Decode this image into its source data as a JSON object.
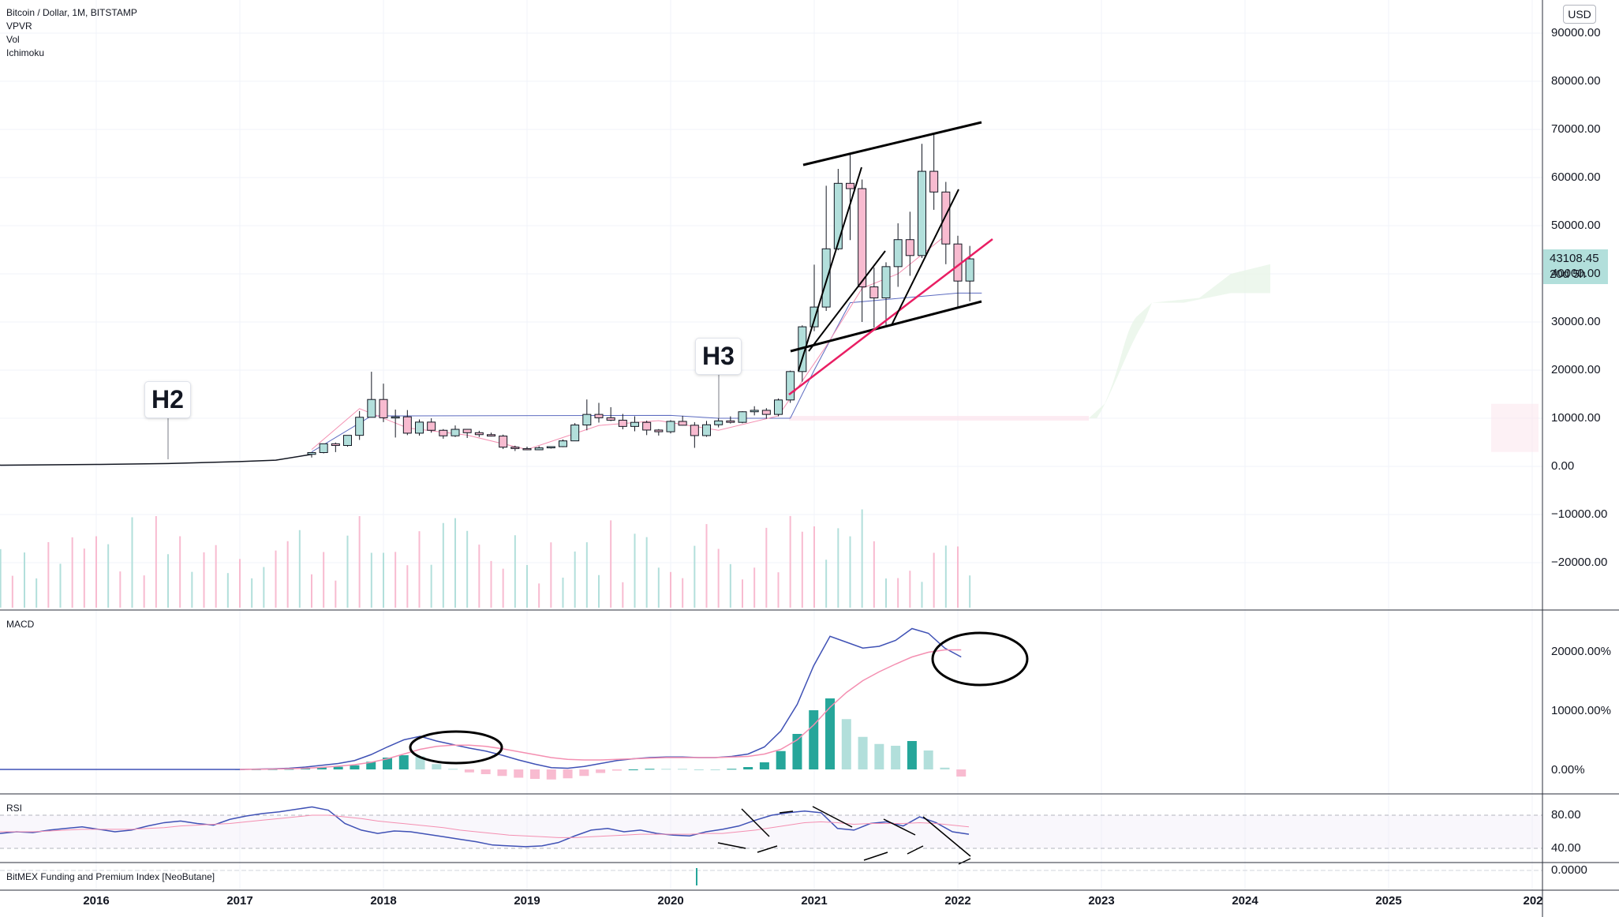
{
  "header": {
    "symbol": "Bitcoin / Dollar, 1M, BITSTAMP",
    "indicators": [
      "VPVR",
      "Vol",
      "Ichimoku"
    ]
  },
  "currency_badge": "USD",
  "last_price": {
    "price": "43108.45",
    "countdown": "20d 5h"
  },
  "panes": {
    "macd_label": "MACD",
    "rsi_label": "RSI",
    "funding_label": "BitMEX Funding and Premium Index [NeoButane]"
  },
  "annotations": [
    "H2",
    "H3"
  ],
  "price_axis": [
    "90000.00",
    "80000.00",
    "70000.00",
    "60000.00",
    "50000.00",
    "40000.00",
    "30000.00",
    "20000.00",
    "10000.00",
    "0.00",
    "−10000.00",
    "−20000.00"
  ],
  "macd_axis": [
    "20000.00%",
    "10000.00%",
    "0.00%"
  ],
  "rsi_axis": [
    "80.00",
    "40.00"
  ],
  "funding_axis": [
    "0.0000"
  ],
  "time_axis": [
    "2016",
    "2017",
    "2018",
    "2019",
    "2020",
    "2021",
    "2022",
    "2023",
    "2024",
    "2025",
    "202"
  ],
  "colors": {
    "up": "#26a69a",
    "up_fill": "#b2dfdb",
    "down": "#ef9a9a",
    "down_fill": "#f8bbd0",
    "macd": "#3f51b5",
    "signal": "#f48fb1",
    "trendline_red": "#e91e63"
  },
  "chart_data": [
    {
      "type": "candlestick",
      "title": "Bitcoin / Dollar, 1M, BITSTAMP",
      "x_unit": "month",
      "ylim": [
        -30000,
        95000
      ],
      "points": [
        {
          "x": "2017-07",
          "o": 2500,
          "h": 2900,
          "l": 1850,
          "c": 2870
        },
        {
          "x": "2017-08",
          "o": 2870,
          "h": 4750,
          "l": 2700,
          "c": 4700
        },
        {
          "x": "2017-09",
          "o": 4700,
          "h": 4950,
          "l": 2970,
          "c": 4340
        },
        {
          "x": "2017-10",
          "o": 4340,
          "h": 6450,
          "l": 4100,
          "c": 6450
        },
        {
          "x": "2017-11",
          "o": 6450,
          "h": 11500,
          "l": 5500,
          "c": 10200
        },
        {
          "x": "2017-12",
          "o": 10200,
          "h": 19660,
          "l": 10800,
          "c": 13900
        },
        {
          "x": "2018-01",
          "o": 13900,
          "h": 17200,
          "l": 9200,
          "c": 10100
        },
        {
          "x": "2018-02",
          "o": 10100,
          "h": 11800,
          "l": 6000,
          "c": 10300
        },
        {
          "x": "2018-03",
          "o": 10300,
          "h": 11700,
          "l": 6500,
          "c": 6900
        },
        {
          "x": "2018-04",
          "o": 6900,
          "h": 9750,
          "l": 6400,
          "c": 9200
        },
        {
          "x": "2018-05",
          "o": 9200,
          "h": 9990,
          "l": 7000,
          "c": 7500
        },
        {
          "x": "2018-06",
          "o": 7500,
          "h": 7750,
          "l": 5750,
          "c": 6350
        },
        {
          "x": "2018-07",
          "o": 6350,
          "h": 8500,
          "l": 6100,
          "c": 7700
        },
        {
          "x": "2018-08",
          "o": 7700,
          "h": 7750,
          "l": 5900,
          "c": 7000
        },
        {
          "x": "2018-09",
          "o": 7000,
          "h": 7400,
          "l": 6100,
          "c": 6600
        },
        {
          "x": "2018-10",
          "o": 6600,
          "h": 7000,
          "l": 6200,
          "c": 6300
        },
        {
          "x": "2018-11",
          "o": 6300,
          "h": 6600,
          "l": 3600,
          "c": 4000
        },
        {
          "x": "2018-12",
          "o": 4000,
          "h": 4300,
          "l": 3200,
          "c": 3700
        },
        {
          "x": "2019-01",
          "o": 3700,
          "h": 4100,
          "l": 3400,
          "c": 3450
        },
        {
          "x": "2019-02",
          "o": 3450,
          "h": 4200,
          "l": 3400,
          "c": 3850
        },
        {
          "x": "2019-03",
          "o": 3850,
          "h": 4100,
          "l": 3700,
          "c": 4100
        },
        {
          "x": "2019-04",
          "o": 4100,
          "h": 5600,
          "l": 4000,
          "c": 5300
        },
        {
          "x": "2019-05",
          "o": 5300,
          "h": 9000,
          "l": 5300,
          "c": 8600
        },
        {
          "x": "2019-06",
          "o": 8600,
          "h": 13900,
          "l": 7500,
          "c": 10800
        },
        {
          "x": "2019-07",
          "o": 10800,
          "h": 13200,
          "l": 9100,
          "c": 10100
        },
        {
          "x": "2019-08",
          "o": 10100,
          "h": 12300,
          "l": 9400,
          "c": 9600
        },
        {
          "x": "2019-09",
          "o": 9600,
          "h": 10900,
          "l": 7700,
          "c": 8300
        },
        {
          "x": "2019-10",
          "o": 8300,
          "h": 10400,
          "l": 7300,
          "c": 9150
        },
        {
          "x": "2019-11",
          "o": 9150,
          "h": 9500,
          "l": 6500,
          "c": 7550
        },
        {
          "x": "2019-12",
          "o": 7550,
          "h": 7750,
          "l": 6400,
          "c": 7200
        },
        {
          "x": "2020-01",
          "o": 7200,
          "h": 9600,
          "l": 6850,
          "c": 9350
        },
        {
          "x": "2020-02",
          "o": 9350,
          "h": 10500,
          "l": 8500,
          "c": 8550
        },
        {
          "x": "2020-03",
          "o": 8550,
          "h": 9200,
          "l": 3850,
          "c": 6400
        },
        {
          "x": "2020-04",
          "o": 6400,
          "h": 9450,
          "l": 6150,
          "c": 8650
        },
        {
          "x": "2020-05",
          "o": 8650,
          "h": 10000,
          "l": 8100,
          "c": 9450
        },
        {
          "x": "2020-06",
          "o": 9450,
          "h": 10400,
          "l": 8900,
          "c": 9150
        },
        {
          "x": "2020-07",
          "o": 9150,
          "h": 11450,
          "l": 8950,
          "c": 11350
        },
        {
          "x": "2020-08",
          "o": 11350,
          "h": 12500,
          "l": 10600,
          "c": 11650
        },
        {
          "x": "2020-09",
          "o": 11650,
          "h": 12100,
          "l": 9900,
          "c": 10800
        },
        {
          "x": "2020-10",
          "o": 10800,
          "h": 14100,
          "l": 10400,
          "c": 13800
        },
        {
          "x": "2020-11",
          "o": 13800,
          "h": 19900,
          "l": 13200,
          "c": 19700
        },
        {
          "x": "2020-12",
          "o": 19700,
          "h": 29300,
          "l": 17600,
          "c": 29000
        },
        {
          "x": "2021-01",
          "o": 29000,
          "h": 41900,
          "l": 28100,
          "c": 33100
        },
        {
          "x": "2021-02",
          "o": 33100,
          "h": 58300,
          "l": 32300,
          "c": 45200
        },
        {
          "x": "2021-03",
          "o": 45200,
          "h": 61800,
          "l": 44900,
          "c": 58800
        },
        {
          "x": "2021-04",
          "o": 58800,
          "h": 64900,
          "l": 47000,
          "c": 57700
        },
        {
          "x": "2021-05",
          "o": 57700,
          "h": 59600,
          "l": 30000,
          "c": 37300
        },
        {
          "x": "2021-06",
          "o": 37300,
          "h": 41300,
          "l": 28800,
          "c": 35000
        },
        {
          "x": "2021-07",
          "o": 35000,
          "h": 42400,
          "l": 29300,
          "c": 41500
        },
        {
          "x": "2021-08",
          "o": 41500,
          "h": 50500,
          "l": 37300,
          "c": 47100
        },
        {
          "x": "2021-09",
          "o": 47100,
          "h": 52900,
          "l": 39600,
          "c": 43800
        },
        {
          "x": "2021-10",
          "o": 43800,
          "h": 67000,
          "l": 43300,
          "c": 61300
        },
        {
          "x": "2021-11",
          "o": 61300,
          "h": 69000,
          "l": 53300,
          "c": 57000
        },
        {
          "x": "2021-12",
          "o": 57000,
          "h": 59100,
          "l": 42000,
          "c": 46200
        },
        {
          "x": "2022-01",
          "o": 46200,
          "h": 47900,
          "l": 32900,
          "c": 38500
        },
        {
          "x": "2022-02",
          "o": 38500,
          "h": 45800,
          "l": 34300,
          "c": 43108.45
        }
      ]
    },
    {
      "type": "line",
      "title": "MACD",
      "y_unit": "%",
      "ylim": [
        -2000,
        25000
      ],
      "series": [
        {
          "values": [
            0,
            50,
            100,
            200,
            400,
            700,
            1000,
            1500,
            2500,
            3800,
            5000,
            5600,
            4800,
            4200,
            3600,
            3100,
            2400,
            1600,
            900,
            300,
            200,
            500,
            1000,
            1500,
            1800,
            2000,
            2100,
            2100,
            2000,
            2000,
            2200,
            2600,
            3800,
            6500,
            11000,
            17500,
            22500,
            21500,
            20500,
            20800,
            21800,
            23800,
            23000,
            20500,
            19000
          ]
        },
        {
          "values": [
            0,
            30,
            60,
            120,
            200,
            350,
            550,
            800,
            1200,
            1800,
            2600,
            3400,
            3900,
            4100,
            4100,
            3900,
            3500,
            3000,
            2500,
            2000,
            1700,
            1600,
            1600,
            1700,
            1800,
            1900,
            2000,
            2000,
            2000,
            2000,
            2100,
            2200,
            2600,
            3400,
            5000,
            7500,
            10500,
            13000,
            15000,
            16500,
            17800,
            19000,
            19800,
            20200,
            20200
          ]
        }
      ]
    },
    {
      "type": "line",
      "title": "RSI",
      "ylim": [
        20,
        100
      ],
      "series": [
        {
          "values": [
            58,
            60,
            59,
            62,
            64,
            66,
            63,
            60,
            62,
            67,
            71,
            73,
            70,
            68,
            75,
            79,
            82,
            84,
            87,
            90,
            86,
            70,
            62,
            58,
            61,
            60,
            57,
            54,
            51,
            48,
            44,
            43,
            42,
            43,
            47,
            55,
            62,
            64,
            60,
            62,
            58,
            56,
            55,
            60,
            63,
            67,
            74,
            80,
            83,
            85,
            83,
            64,
            62,
            70,
            72,
            67,
            78,
            71,
            60,
            57
          ]
        },
        {
          "values": [
            60,
            60,
            60,
            61,
            62,
            63,
            63,
            63,
            63,
            64,
            65,
            67,
            68,
            69,
            70,
            72,
            74,
            76,
            78,
            80,
            80,
            78,
            76,
            73,
            71,
            69,
            67,
            65,
            62,
            60,
            58,
            56,
            55,
            54,
            53,
            53,
            54,
            55,
            56,
            57,
            57,
            57,
            57,
            58,
            58,
            60,
            62,
            65,
            68,
            71,
            72,
            71,
            69,
            70,
            70,
            70,
            71,
            70,
            68,
            66
          ]
        }
      ]
    }
  ]
}
